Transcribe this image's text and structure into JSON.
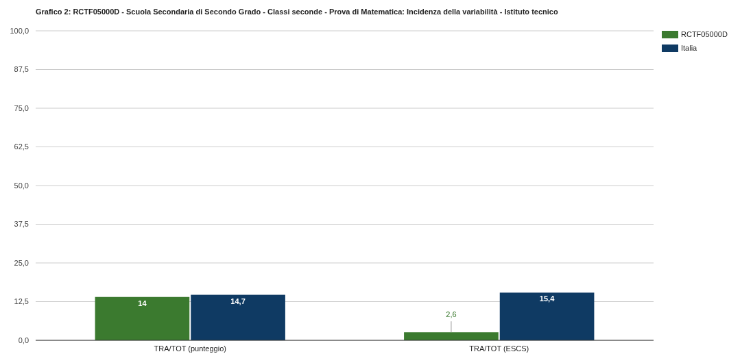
{
  "chart_data": {
    "type": "bar",
    "title": "Grafico 2: RCTF05000D - Scuola Secondaria di Secondo Grado - Classi seconde - Prova di Matematica: Incidenza della variabilità - Istituto tecnico",
    "categories": [
      "TRA/TOT (punteggio)",
      "TRA/TOT (ESCS)"
    ],
    "series": [
      {
        "name": "RCTF05000D",
        "color": "#3b7a2f",
        "values": [
          14,
          2.6
        ],
        "value_labels": [
          "14",
          "2,6"
        ]
      },
      {
        "name": "Italia",
        "color": "#0f3a63",
        "values": [
          14.7,
          15.4
        ],
        "value_labels": [
          "14,7",
          "15,4"
        ]
      }
    ],
    "ylim": [
      0,
      100
    ],
    "yticks": [
      {
        "value": 0,
        "label": "0,0"
      },
      {
        "value": 12.5,
        "label": "12,5"
      },
      {
        "value": 25,
        "label": "25,0"
      },
      {
        "value": 37.5,
        "label": "37,5"
      },
      {
        "value": 50,
        "label": "50,0"
      },
      {
        "value": 62.5,
        "label": "62,5"
      },
      {
        "value": 75,
        "label": "75,0"
      },
      {
        "value": 87.5,
        "label": "87,5"
      },
      {
        "value": 100,
        "label": "100,0"
      }
    ],
    "grid": "y",
    "legend": "top right"
  }
}
